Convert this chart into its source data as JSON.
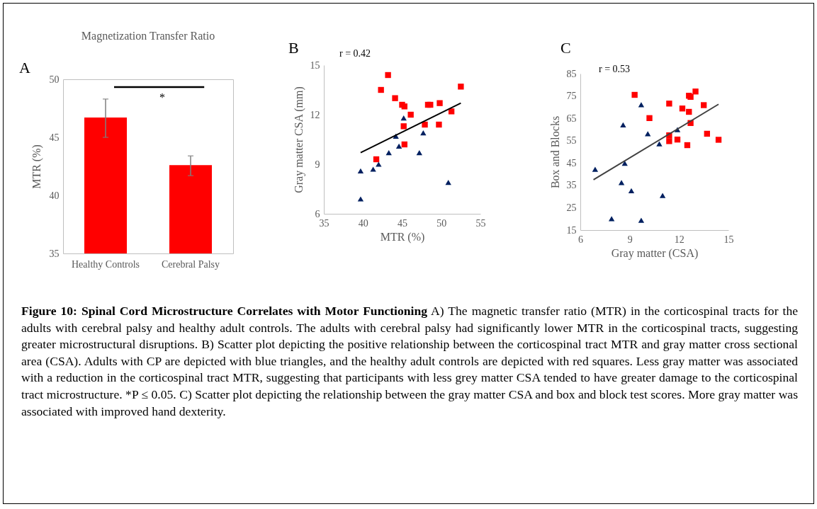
{
  "chart_data": [
    {
      "type": "bar",
      "title": "Magnetization Transfer Ratio",
      "ylabel": "MTR (%)",
      "categories": [
        "Healthy Controls",
        "Cerebral Palsy"
      ],
      "values": [
        46.7,
        42.6
      ],
      "errors": [
        [
          45.0,
          48.3
        ],
        [
          41.7,
          43.4
        ]
      ],
      "color": "#ff0000",
      "ylim": [
        35,
        50
      ],
      "yticks": [
        35,
        40,
        45,
        50
      ],
      "annotations": [
        "A",
        "*"
      ]
    },
    {
      "type": "scatter",
      "xlabel": "MTR (%)",
      "ylabel": "Gray matter CSA (mm)",
      "xlim": [
        35,
        55
      ],
      "xticks": [
        35,
        40,
        45,
        50,
        55
      ],
      "ylim": [
        6,
        15
      ],
      "yticks": [
        6,
        9,
        12,
        15
      ],
      "annotations": [
        "B",
        "r = 0.42"
      ],
      "series": [
        {
          "color": "#ff0000",
          "marker": "square",
          "x": [
            42.3,
            43.2,
            44.1,
            45.0,
            45.3,
            46.1,
            45.2,
            45.3,
            41.7,
            48.3,
            48.6,
            49.8,
            49.7,
            47.9,
            51.3,
            52.5
          ],
          "values": [
            13.5,
            14.4,
            13.0,
            12.6,
            12.5,
            12.0,
            11.3,
            10.2,
            9.3,
            12.6,
            12.6,
            12.7,
            11.4,
            11.4,
            12.2,
            13.7
          ]
        },
        {
          "color": "#002060",
          "marker": "triangle",
          "x": [
            39.7,
            39.7,
            41.3,
            42.0,
            43.3,
            44.2,
            44.6,
            45.2,
            47.2,
            47.7,
            50.9
          ],
          "values": [
            6.9,
            8.6,
            8.7,
            9.0,
            9.7,
            10.7,
            10.1,
            11.8,
            9.7,
            10.9,
            7.9
          ]
        },
        {
          "type": "line",
          "color": "#000000",
          "x": [
            39.7,
            52.5
          ],
          "values": [
            9.7,
            12.7
          ]
        }
      ]
    },
    {
      "type": "scatter",
      "xlabel": "Gray matter (CSA)",
      "ylabel": "Box and Blocks",
      "xlim": [
        6,
        15
      ],
      "xticks": [
        6,
        9,
        12,
        15
      ],
      "ylim": [
        15,
        85
      ],
      "yticks": [
        15,
        25,
        35,
        45,
        55,
        65,
        75,
        85
      ],
      "annotations": [
        "C",
        "r = 0.53"
      ],
      "series": [
        {
          "color": "#ff0000",
          "marker": "square",
          "x": [
            9.3,
            10.2,
            11.4,
            12.2,
            12.6,
            12.6,
            12.7,
            13.0,
            13.5,
            12.7,
            13.7,
            14.4,
            11.4,
            11.4,
            11.9,
            12.5
          ],
          "values": [
            75.5,
            65.1,
            71.6,
            69.4,
            67.9,
            75.1,
            74.6,
            77.0,
            70.9,
            62.9,
            58.1,
            55.4,
            57.4,
            54.8,
            55.5,
            53.0
          ]
        },
        {
          "color": "#002060",
          "marker": "triangle",
          "x": [
            6.9,
            8.6,
            9.7,
            10.1,
            10.8,
            11.9,
            8.7,
            8.5,
            9.1,
            11.0,
            7.9,
            9.7
          ],
          "values": [
            42.2,
            62.1,
            71.1,
            58.1,
            53.6,
            59.9,
            44.9,
            36.3,
            32.6,
            30.5,
            20.1,
            19.4
          ]
        },
        {
          "type": "line",
          "color": "#404040",
          "x": [
            6.8,
            14.4
          ],
          "values": [
            37.5,
            71.3
          ]
        }
      ]
    },
    {
      "type": "other",
      "title": "Figure 10: Spinal Cord Microstructure Correlates with Motor Functioning",
      "annotations": [
        "A) The magnetic transfer ratio (MTR) in the corticospinal tracts for the adults with cerebral palsy and healthy adult controls. The adults with cerebral palsy had significantly lower MTR in the corticospinal tracts, suggesting greater microstructural disruptions. B) Scatter plot depicting the positive relationship between the corticospinal tract MTR and gray matter cross sectional area (CSA). Adults with CP are depicted with blue triangles, and the healthy adult controls are depicted with red squares. Less gray matter was associated with a reduction in the corticospinal tract MTR, suggesting that participants with less grey matter CSA tended to have greater damage to the corticospinal tract microstructure. *P ≤ 0.05. C) Scatter plot depicting the relationship between the gray matter CSA and box and block test scores. More gray matter was associated with improved hand dexterity."
      ]
    }
  ]
}
